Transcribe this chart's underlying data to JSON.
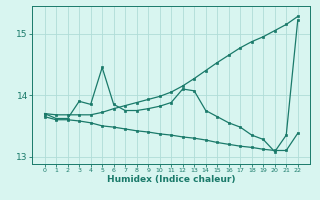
{
  "xlabel": "Humidex (Indice chaleur)",
  "x": [
    0,
    1,
    2,
    3,
    4,
    5,
    6,
    7,
    8,
    9,
    10,
    11,
    12,
    13,
    14,
    15,
    16,
    17,
    18,
    19,
    20,
    21,
    22
  ],
  "line_upper": [
    13.7,
    13.68,
    13.68,
    13.68,
    13.68,
    13.72,
    13.78,
    13.83,
    13.88,
    13.93,
    13.98,
    14.05,
    14.15,
    14.27,
    14.4,
    14.53,
    14.65,
    14.77,
    14.87,
    14.95,
    15.05,
    15.15,
    15.28
  ],
  "line_mid": [
    13.7,
    13.62,
    13.62,
    13.9,
    13.85,
    14.45,
    13.85,
    13.75,
    13.75,
    13.78,
    13.82,
    13.88,
    14.1,
    14.07,
    13.75,
    13.65,
    13.55,
    13.48,
    13.35,
    13.28,
    13.08,
    13.35,
    15.22
  ],
  "line_lower": [
    13.65,
    13.6,
    13.6,
    13.58,
    13.55,
    13.5,
    13.48,
    13.45,
    13.42,
    13.4,
    13.37,
    13.35,
    13.32,
    13.3,
    13.27,
    13.23,
    13.2,
    13.17,
    13.15,
    13.12,
    13.1,
    13.1,
    13.38
  ],
  "line_color": "#1a7a6a",
  "bg_color": "#d8f5f0",
  "grid_color": "#b0ddd8",
  "ylim": [
    12.88,
    15.45
  ],
  "yticks": [
    13,
    14,
    15
  ],
  "xticks": [
    0,
    1,
    2,
    3,
    4,
    5,
    6,
    7,
    8,
    9,
    10,
    11,
    12,
    13,
    14,
    15,
    16,
    17,
    18,
    19,
    20,
    21,
    22
  ]
}
